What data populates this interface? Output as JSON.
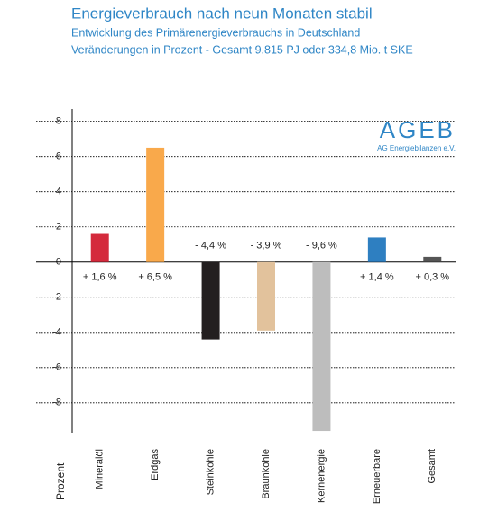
{
  "chart_data": {
    "type": "bar",
    "title": "Energieverbrauch nach neun Monaten stabil",
    "subtitle": "Entwicklung des Primärenergieverbrauchs in Deutschland",
    "subtitle2": "Veränderungen in Prozent - Gesamt 9.815 PJ oder 334,8 Mio. t SKE",
    "y_label": "Prozent",
    "annotations": [
      "AGEB",
      "AG Energiebilanzen e.V."
    ],
    "categories": [
      "Mineralöl",
      "Erdgas",
      "Steinkohle",
      "Braunkohle",
      "Kernenergie",
      "Erneuerbare",
      "Gesamt"
    ],
    "values": [
      1.6,
      6.5,
      -4.4,
      -3.9,
      -9.6,
      1.4,
      0.3
    ],
    "value_labels": [
      "+ 1,6 %",
      "+ 6,5 %",
      "- 4,4 %",
      "- 3,9 %",
      "- 9,6 %",
      "+ 1,4 %",
      "+ 0,3 %"
    ],
    "colors": [
      "#d42a3c",
      "#f9a94b",
      "#231f20",
      "#e2c29c",
      "#bdbdbd",
      "#2e7fc1",
      "#555555"
    ],
    "ylim": [
      -9.7,
      8.7
    ],
    "yticks": [
      -8,
      -6,
      -4,
      -2,
      0,
      2,
      4,
      6,
      8
    ],
    "grid": true
  }
}
